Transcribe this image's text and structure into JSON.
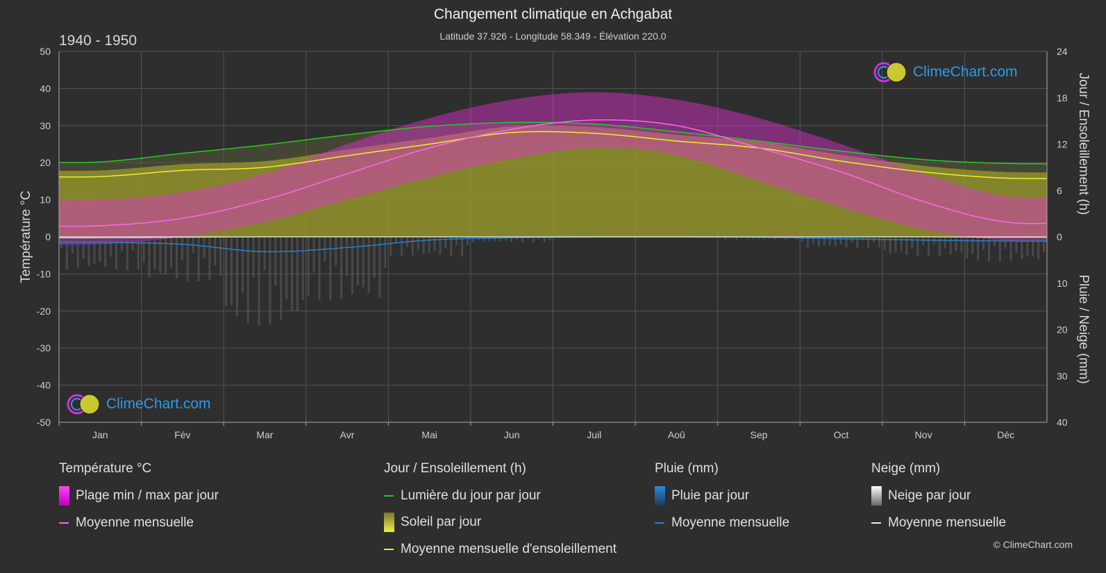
{
  "title": "Changement climatique en Achgabat",
  "subtitle": "Latitude 37.926 - Longitude 58.349 - Élévation 220.0",
  "period": "1940 - 1950",
  "brand": "ClimeChart.com",
  "copyright": "© ClimeChart.com",
  "colors": {
    "background": "#2e2e2e",
    "temp_range": "#e030d0",
    "temp_mean": "#ff66ee",
    "daylight": "#22cc22",
    "sunshine_fill": "#b8b828",
    "sunshine_mean": "#eeee33",
    "rain": "#2a7fcf",
    "snow": "#bbbbbb",
    "brand": "#2f9ce6"
  },
  "legend": {
    "temp": {
      "heading": "Température °C",
      "range_label": "Plage min / max par jour",
      "mean_label": "Moyenne mensuelle"
    },
    "sun": {
      "heading": "Jour / Ensoleillement (h)",
      "daylight_label": "Lumière du jour par jour",
      "sunshine_label": "Soleil par jour",
      "mean_label": "Moyenne mensuelle d'ensoleillement"
    },
    "rain": {
      "heading": "Pluie (mm)",
      "day_label": "Pluie par jour",
      "mean_label": "Moyenne mensuelle"
    },
    "snow": {
      "heading": "Neige (mm)",
      "day_label": "Neige par jour",
      "mean_label": "Moyenne mensuelle"
    }
  },
  "chart_data": {
    "type": "area",
    "categories": [
      "Jan",
      "Fév",
      "Mar",
      "Avr",
      "Mai",
      "Jun",
      "Juil",
      "Aoû",
      "Sep",
      "Oct",
      "Nov",
      "Déc"
    ],
    "y_left": {
      "label": "Température °C",
      "range": [
        -50,
        50
      ],
      "ticks": [
        50,
        40,
        30,
        20,
        10,
        0,
        -10,
        -20,
        -30,
        -40,
        -50
      ]
    },
    "y_right_top": {
      "label": "Jour / Ensoleillement (h)",
      "range": [
        0,
        24
      ],
      "ticks": [
        24,
        18,
        12,
        6,
        0
      ]
    },
    "y_right_bottom": {
      "label": "Pluie / Neige (mm)",
      "range": [
        0,
        40
      ],
      "ticks": [
        0,
        10,
        20,
        30,
        40
      ]
    },
    "grid": true,
    "series": [
      {
        "name": "Moyenne mensuelle",
        "axis": "temp",
        "values": [
          3,
          5,
          10,
          17,
          24,
          29,
          31.5,
          30,
          24,
          17.5,
          9.5,
          4
        ]
      },
      {
        "name": "Plage min / max par jour (min)",
        "axis": "temp",
        "values": [
          -2,
          0,
          4,
          10,
          16,
          21,
          24,
          22,
          15,
          8,
          2,
          -1
        ]
      },
      {
        "name": "Plage min / max par jour (max)",
        "axis": "temp",
        "values": [
          10,
          12,
          17,
          25,
          32,
          37,
          39,
          37,
          32,
          25,
          17,
          11
        ]
      },
      {
        "name": "Lumière du jour par jour",
        "axis": "hours",
        "values": [
          9.7,
          10.8,
          11.9,
          13.2,
          14.3,
          14.8,
          14.6,
          13.6,
          12.4,
          11.1,
          10.0,
          9.5
        ]
      },
      {
        "name": "Moyenne mensuelle d'ensoleillement",
        "axis": "hours",
        "values": [
          7.8,
          8.6,
          9.0,
          10.5,
          12.0,
          13.5,
          13.4,
          12.4,
          11.5,
          9.8,
          8.4,
          7.6
        ]
      },
      {
        "name": "Pluie - Moyenne mensuelle",
        "axis": "mm",
        "values": [
          1.2,
          1.6,
          3.2,
          2.3,
          0.7,
          0.2,
          0.05,
          0.05,
          0.1,
          0.4,
          0.7,
          0.9
        ]
      },
      {
        "name": "Neige - Moyenne mensuelle",
        "axis": "mm",
        "values": [
          0.2,
          0.1,
          0,
          0,
          0,
          0,
          0,
          0,
          0,
          0,
          0,
          0.1
        ]
      }
    ]
  }
}
